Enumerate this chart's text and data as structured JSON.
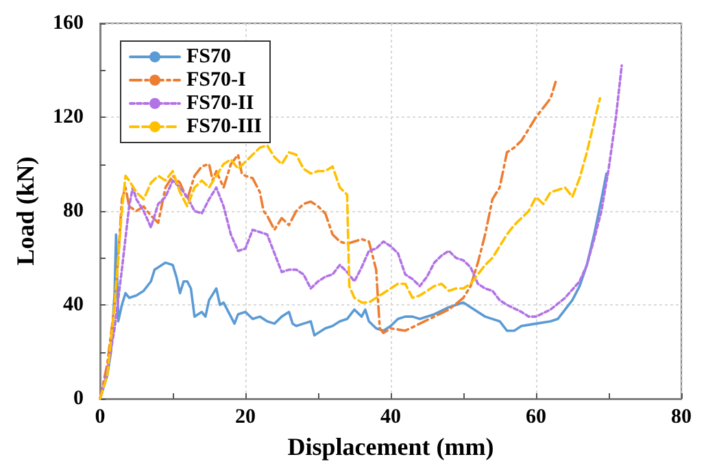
{
  "chart_data": {
    "type": "line",
    "xlabel": "Displacement (mm)",
    "ylabel": "Load (kN)",
    "xlim": [
      0,
      80
    ],
    "ylim": [
      0,
      160
    ],
    "xticks": [
      0,
      {
        "value": 10,
        "label": null
      },
      20,
      {
        "value": 30,
        "label": null
      },
      40,
      {
        "value": 50,
        "label": null
      },
      60,
      {
        "value": 70,
        "label": null
      },
      80
    ],
    "yticks": [
      0,
      {
        "value": 20,
        "label": null
      },
      40,
      {
        "value": 60,
        "label": null
      },
      80,
      {
        "value": 100,
        "label": null
      },
      120,
      {
        "value": 140,
        "label": null
      },
      160
    ],
    "grid": true,
    "legend": "top left",
    "marker": "none",
    "series": [
      {
        "name": "FS70",
        "color": "#5b9bd5",
        "line_style": "solid",
        "x": [
          0,
          1,
          1.5,
          2,
          2.2,
          2.5,
          3,
          3.5,
          4,
          5,
          6,
          7,
          7.5,
          8,
          9,
          10,
          10.5,
          11,
          11.5,
          12,
          12.5,
          13,
          14,
          14.5,
          15,
          16,
          16.5,
          17,
          18,
          18.5,
          19,
          20,
          21,
          22,
          23,
          24,
          25,
          26,
          26.5,
          27,
          28,
          29,
          29.5,
          30,
          31,
          32,
          33,
          34,
          35,
          36,
          36.5,
          37,
          38,
          39,
          40,
          41,
          42,
          43,
          44,
          46,
          48,
          49,
          50,
          51,
          53,
          55,
          56,
          57,
          58,
          60,
          62,
          63,
          64,
          65,
          66,
          67,
          68,
          69,
          69.7
        ],
        "values": [
          0,
          10,
          20,
          45,
          70,
          33,
          40,
          45,
          43,
          44,
          46,
          50,
          55,
          56,
          58,
          57,
          52,
          45,
          50,
          50,
          47,
          35,
          37,
          35,
          42,
          47,
          40,
          41,
          35,
          32,
          36,
          37,
          34,
          35,
          33,
          32,
          35,
          37,
          32,
          31,
          32,
          33,
          27,
          28,
          30,
          31,
          33,
          34,
          38,
          35,
          38,
          33,
          30,
          29,
          31,
          34,
          35,
          35,
          34,
          36,
          39,
          40,
          41,
          39,
          35,
          33,
          29,
          29,
          31,
          32,
          33,
          34,
          38,
          42,
          48,
          57,
          70,
          85,
          96
        ]
      },
      {
        "name": "FS70-I",
        "color": "#ed7d31",
        "line_style": "dashdot",
        "x": [
          0,
          1,
          2,
          2.5,
          3,
          3.5,
          4,
          5,
          6,
          7,
          8,
          9,
          10,
          11,
          12,
          13,
          14,
          15,
          15.5,
          16,
          17,
          18,
          19,
          19.5,
          20,
          21,
          22,
          22.5,
          23,
          24,
          25,
          26,
          27,
          28,
          29,
          30,
          31,
          32,
          33,
          34,
          35,
          36,
          37,
          38,
          38.5,
          39,
          40,
          42,
          44,
          46,
          48,
          50,
          51,
          52,
          53,
          54,
          55,
          56,
          57,
          58,
          59,
          60,
          61,
          62,
          62.7
        ],
        "values": [
          0,
          15,
          40,
          60,
          85,
          90,
          82,
          80,
          82,
          78,
          75,
          90,
          95,
          92,
          85,
          95,
          99,
          100,
          93,
          97,
          90,
          100,
          104,
          96,
          95,
          94,
          88,
          80,
          78,
          72,
          77,
          74,
          80,
          83,
          84,
          82,
          79,
          70,
          67,
          66,
          67,
          68,
          67,
          55,
          30,
          28,
          30,
          29,
          32,
          35,
          38,
          43,
          48,
          58,
          70,
          85,
          90,
          105,
          107,
          110,
          115,
          120,
          124,
          128,
          135
        ]
      },
      {
        "name": "FS70-II",
        "color": "#b273e6",
        "line_style": "dotted",
        "x": [
          0,
          1,
          2,
          3,
          4,
          4.5,
          5,
          6,
          7,
          8,
          9,
          10,
          11,
          12,
          13,
          14,
          15,
          16,
          17,
          18,
          19,
          20,
          21,
          22,
          23,
          24,
          25,
          26,
          27,
          28,
          29,
          30,
          31,
          32,
          33,
          34,
          35,
          36,
          37,
          38,
          39,
          40,
          41,
          42,
          43,
          44,
          45,
          46,
          47,
          48,
          49,
          50,
          51,
          52,
          53,
          54,
          55,
          56,
          58,
          59,
          60,
          62,
          64,
          66,
          67,
          68,
          69,
          70,
          71,
          71.8
        ],
        "values": [
          0,
          12,
          30,
          55,
          82,
          90,
          85,
          80,
          73,
          83,
          86,
          93,
          90,
          86,
          80,
          79,
          85,
          90,
          82,
          70,
          63,
          64,
          72,
          71,
          70,
          62,
          54,
          55,
          55,
          53,
          47,
          50,
          52,
          53,
          57,
          54,
          50,
          56,
          63,
          64,
          67,
          65,
          62,
          53,
          51,
          48,
          52,
          58,
          61,
          63,
          60,
          59,
          56,
          49,
          47,
          46,
          42,
          40,
          37,
          35,
          35,
          38,
          43,
          50,
          57,
          68,
          80,
          98,
          120,
          142
        ]
      },
      {
        "name": "FS70-III",
        "color": "#ffc000",
        "line_style": "dashed",
        "x": [
          0,
          1,
          2,
          3,
          3.5,
          4,
          5,
          6,
          7,
          8,
          9,
          10,
          11,
          12,
          13,
          14,
          15,
          16,
          17,
          18,
          19,
          20,
          21,
          22,
          23,
          24,
          25,
          26,
          27,
          28,
          29,
          30,
          31,
          32,
          33,
          34,
          34.3,
          35,
          36,
          37,
          38,
          39,
          40,
          41,
          42,
          43,
          44,
          45,
          46,
          47,
          48,
          49,
          50,
          51,
          52,
          53,
          54,
          55,
          56,
          57,
          58,
          59,
          60,
          61,
          62,
          63,
          64,
          65,
          66,
          67,
          68,
          68.8
        ],
        "values": [
          0,
          10,
          40,
          80,
          95,
          93,
          88,
          85,
          92,
          95,
          93,
          97,
          88,
          82,
          90,
          93,
          90,
          95,
          100,
          102,
          98,
          101,
          104,
          107,
          108,
          103,
          100,
          105,
          104,
          98,
          96,
          97,
          97,
          99,
          90,
          87,
          48,
          43,
          41,
          41,
          43,
          45,
          47,
          49,
          49,
          43,
          44,
          46,
          48,
          49,
          46,
          47,
          47,
          49,
          53,
          57,
          60,
          65,
          70,
          74,
          77,
          80,
          86,
          83,
          88,
          89,
          90,
          86,
          94,
          105,
          118,
          128
        ]
      }
    ]
  }
}
